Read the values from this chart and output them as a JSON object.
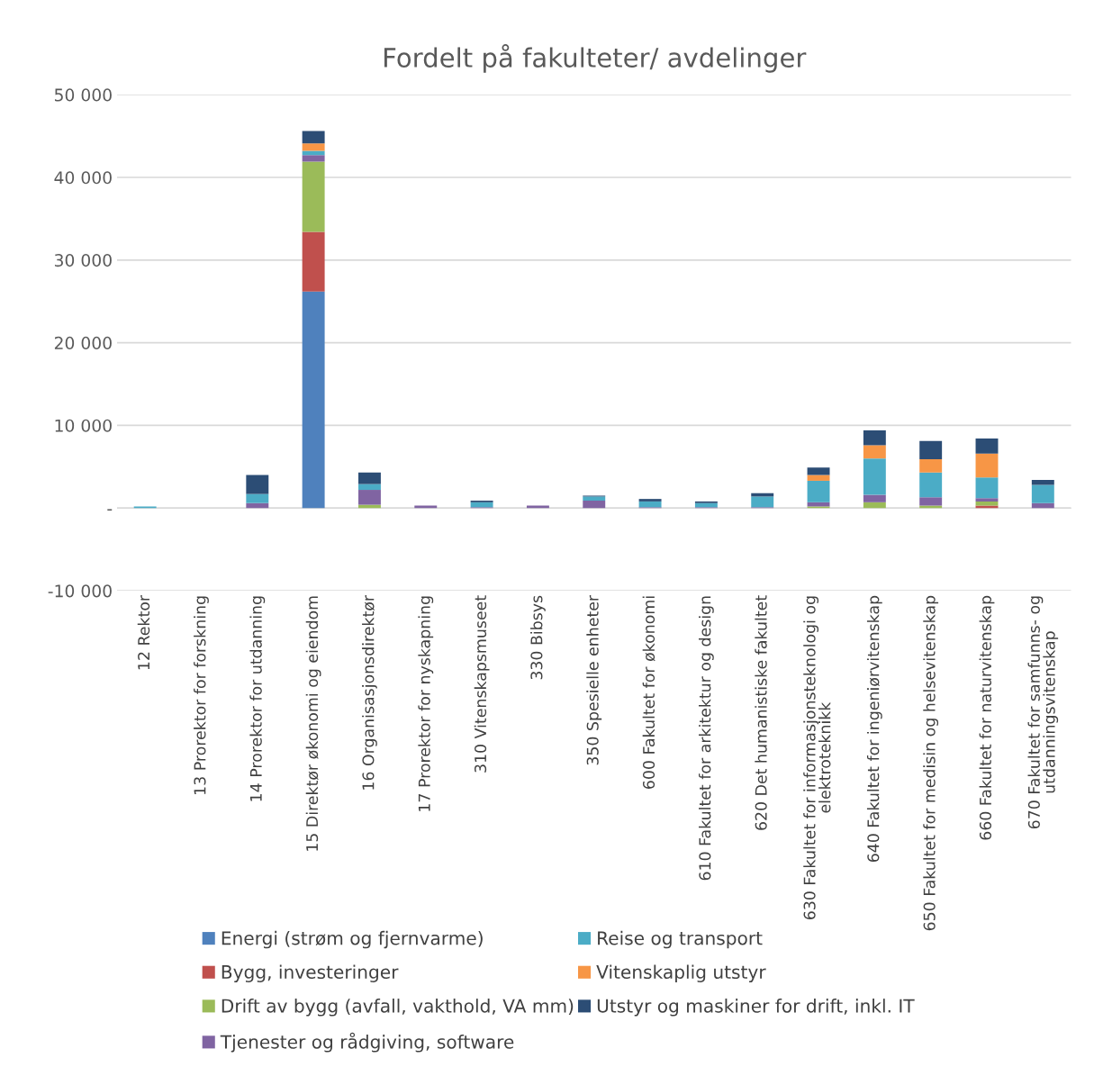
{
  "chart_data": {
    "type": "bar",
    "stacked": true,
    "title": "Fordelt på fakulteter/ avdelinger",
    "categories": [
      "12 Rektor",
      "13 Prorektor for forskning",
      "14 Prorektor for utdanning",
      "15 Direktør økonomi og eiendom",
      "16 Organisasjonsdirektør",
      "17 Prorektor for nyskapning",
      "310 Vitenskapsmuseet",
      "330 Bibsys",
      "350 Spesielle enheter",
      "600 Fakultet for økonomi",
      "610 Fakultet for arkitektur og design",
      "620 Det humanistiske fakultet",
      "630 Fakultet for informasjonsteknologi og\nelektroteknikk",
      "640 Fakultet for ingeniørvitenskap",
      "650 Fakultet for medisin og helsevitenskap",
      "660 Fakultet for naturvitenskap",
      "670 Fakultet for samfunns- og\nutdanningsvitenskap"
    ],
    "series": [
      {
        "name": "Energi (strøm og fjernvarme)",
        "color": "#4f81bd",
        "values": [
          0,
          0,
          0,
          26200,
          0,
          0,
          0,
          0,
          0,
          0,
          0,
          0,
          0,
          0,
          0,
          0,
          0
        ]
      },
      {
        "name": "Bygg, investeringer",
        "color": "#c0504d",
        "values": [
          0,
          0,
          0,
          7200,
          0,
          0,
          0,
          0,
          0,
          0,
          0,
          0,
          0,
          0,
          0,
          300,
          0
        ]
      },
      {
        "name": "Drift av bygg (avfall, vakthold, VA mm)",
        "color": "#9bbb59",
        "values": [
          0,
          0,
          0,
          8500,
          400,
          0,
          0,
          0,
          0,
          0,
          0,
          0,
          200,
          700,
          300,
          500,
          0
        ]
      },
      {
        "name": "Tjenester og rådgiving, software",
        "color": "#8064a2",
        "values": [
          0,
          0,
          600,
          800,
          1800,
          300,
          100,
          300,
          900,
          100,
          100,
          100,
          500,
          900,
          1000,
          400,
          600
        ]
      },
      {
        "name": "Reise og transport",
        "color": "#4bacc6",
        "values": [
          200,
          0,
          1100,
          500,
          700,
          0,
          600,
          0,
          500,
          700,
          500,
          1300,
          2600,
          4400,
          3000,
          2500,
          2200
        ]
      },
      {
        "name": "Vitenskaplig utstyr",
        "color": "#f79646",
        "values": [
          0,
          0,
          0,
          900,
          0,
          0,
          0,
          0,
          0,
          0,
          0,
          0,
          700,
          1600,
          1600,
          2900,
          0
        ]
      },
      {
        "name": "Utstyr og maskiner for drift, inkl. IT",
        "color": "#2c4d75",
        "values": [
          0,
          0,
          2300,
          1500,
          1400,
          0,
          200,
          0,
          100,
          300,
          200,
          400,
          900,
          1800,
          2200,
          1800,
          600
        ]
      }
    ],
    "ylim": [
      -10000,
      50000
    ],
    "yticks": [
      {
        "value": -10000,
        "label": "-10 000"
      },
      {
        "value": 0,
        "label": "-"
      },
      {
        "value": 10000,
        "label": "10 000"
      },
      {
        "value": 20000,
        "label": "20 000"
      },
      {
        "value": 30000,
        "label": "30 000"
      },
      {
        "value": 40000,
        "label": "40 000"
      },
      {
        "value": 50000,
        "label": "50 000"
      }
    ],
    "grid": "y",
    "legend": "bottom"
  }
}
